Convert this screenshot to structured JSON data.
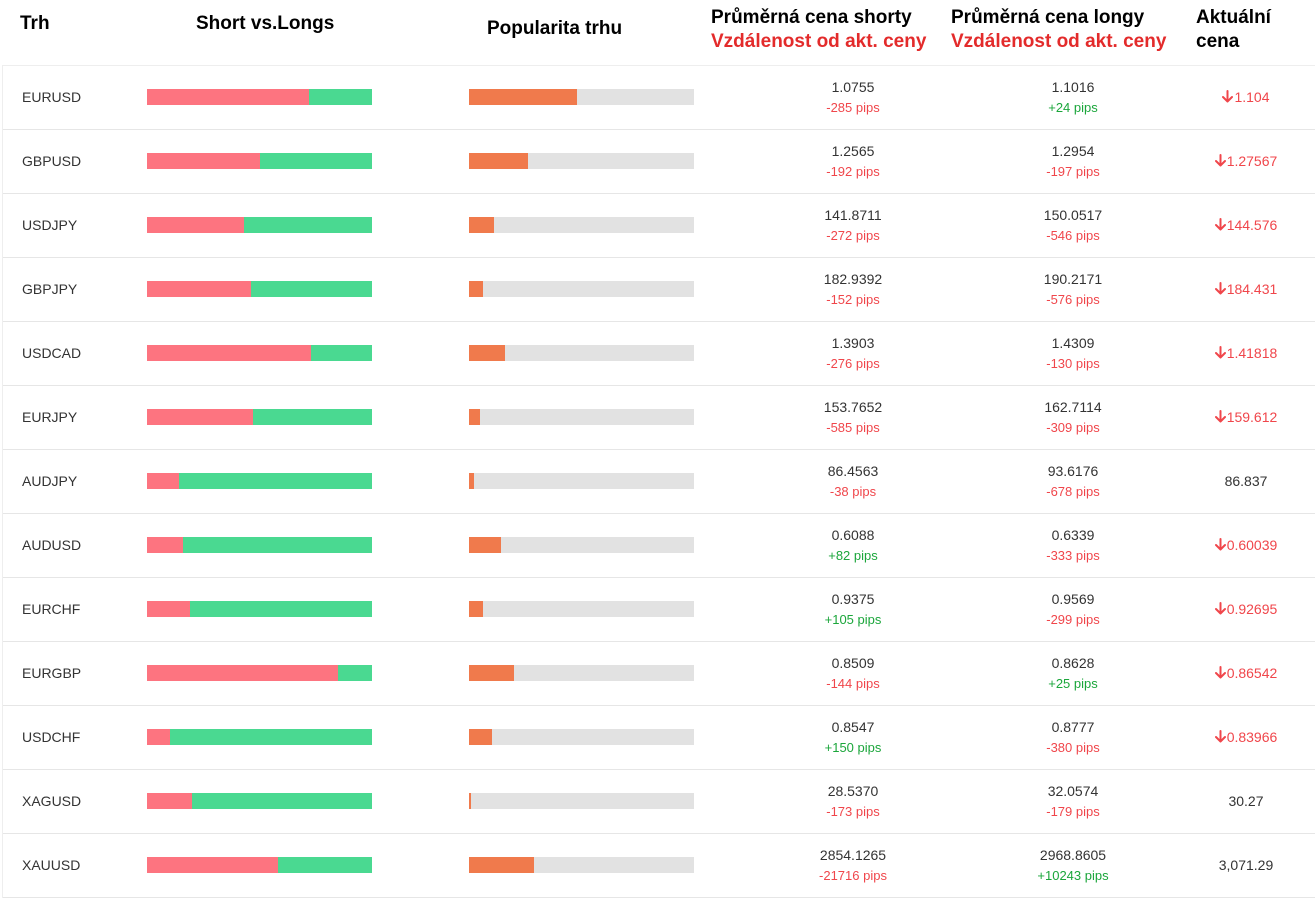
{
  "header": {
    "market": "Trh",
    "short_vs_longs": "Short vs.Longs",
    "popularity": "Popularita trhu",
    "avg_short_price": "Průměrná cena shorty",
    "avg_long_price": "Průměrná cena longy",
    "distance_label": "Vzdálenost od akt. ceny",
    "current_price_line1": "Aktuální",
    "current_price_line2": "cena"
  },
  "colors": {
    "short": "#fd7480",
    "long": "#4ad991",
    "popularity": "#f07a4c",
    "track": "#e2e2e2",
    "negative": "#f0464b",
    "positive": "#1ba63b"
  },
  "icons": {
    "down": "arrow-down-icon"
  },
  "rows": [
    {
      "symbol": "EURUSD",
      "short_pct": 72,
      "popularity_pct": 48,
      "avg_short": "1.0755",
      "short_pips": "-285 pips",
      "avg_long": "1.1016",
      "long_pips": "+24 pips",
      "current": "1.104",
      "trend": "down"
    },
    {
      "symbol": "GBPUSD",
      "short_pct": 50,
      "popularity_pct": 26,
      "avg_short": "1.2565",
      "short_pips": "-192 pips",
      "avg_long": "1.2954",
      "long_pips": "-197 pips",
      "current": "1.27567",
      "trend": "down"
    },
    {
      "symbol": "USDJPY",
      "short_pct": 43,
      "popularity_pct": 11,
      "avg_short": "141.8711",
      "short_pips": "-272 pips",
      "avg_long": "150.0517",
      "long_pips": "-546 pips",
      "current": "144.576",
      "trend": "down"
    },
    {
      "symbol": "GBPJPY",
      "short_pct": 46,
      "popularity_pct": 6,
      "avg_short": "182.9392",
      "short_pips": "-152 pips",
      "avg_long": "190.2171",
      "long_pips": "-576 pips",
      "current": "184.431",
      "trend": "down"
    },
    {
      "symbol": "USDCAD",
      "short_pct": 73,
      "popularity_pct": 16,
      "avg_short": "1.3903",
      "short_pips": "-276 pips",
      "avg_long": "1.4309",
      "long_pips": "-130 pips",
      "current": "1.41818",
      "trend": "down"
    },
    {
      "symbol": "EURJPY",
      "short_pct": 47,
      "popularity_pct": 5,
      "avg_short": "153.7652",
      "short_pips": "-585 pips",
      "avg_long": "162.7114",
      "long_pips": "-309 pips",
      "current": "159.612",
      "trend": "down"
    },
    {
      "symbol": "AUDJPY",
      "short_pct": 14,
      "popularity_pct": 2,
      "avg_short": "86.4563",
      "short_pips": "-38 pips",
      "avg_long": "93.6176",
      "long_pips": "-678 pips",
      "current": "86.837",
      "trend": "none"
    },
    {
      "symbol": "AUDUSD",
      "short_pct": 16,
      "popularity_pct": 14,
      "avg_short": "0.6088",
      "short_pips": "+82 pips",
      "avg_long": "0.6339",
      "long_pips": "-333 pips",
      "current": "0.60039",
      "trend": "down"
    },
    {
      "symbol": "EURCHF",
      "short_pct": 19,
      "popularity_pct": 6,
      "avg_short": "0.9375",
      "short_pips": "+105 pips",
      "avg_long": "0.9569",
      "long_pips": "-299 pips",
      "current": "0.92695",
      "trend": "down"
    },
    {
      "symbol": "EURGBP",
      "short_pct": 85,
      "popularity_pct": 20,
      "avg_short": "0.8509",
      "short_pips": "-144 pips",
      "avg_long": "0.8628",
      "long_pips": "+25 pips",
      "current": "0.86542",
      "trend": "down"
    },
    {
      "symbol": "USDCHF",
      "short_pct": 10,
      "popularity_pct": 10,
      "avg_short": "0.8547",
      "short_pips": "+150 pips",
      "avg_long": "0.8777",
      "long_pips": "-380 pips",
      "current": "0.83966",
      "trend": "down"
    },
    {
      "symbol": "XAGUSD",
      "short_pct": 20,
      "popularity_pct": 1,
      "avg_short": "28.5370",
      "short_pips": "-173 pips",
      "avg_long": "32.0574",
      "long_pips": "-179 pips",
      "current": "30.27",
      "trend": "none"
    },
    {
      "symbol": "XAUUSD",
      "short_pct": 58,
      "popularity_pct": 29,
      "avg_short": "2854.1265",
      "short_pips": "-21716 pips",
      "avg_long": "2968.8605",
      "long_pips": "+10243 pips",
      "current": "3,071.29",
      "trend": "none"
    }
  ]
}
